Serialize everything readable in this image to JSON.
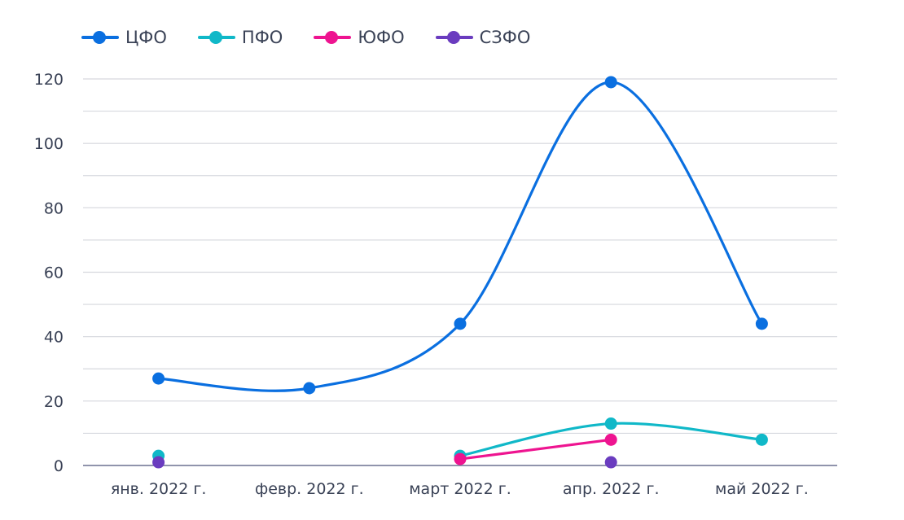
{
  "chart_data": {
    "type": "line",
    "categories": [
      "янв. 2022 г.",
      "февр. 2022 г.",
      "март 2022 г.",
      "апр. 2022 г.",
      "май 2022 г."
    ],
    "ylim": [
      0,
      120
    ],
    "yticks": [
      0,
      20,
      40,
      60,
      80,
      100,
      120
    ],
    "grid": true,
    "legend_position": "top-left",
    "series": [
      {
        "name": "ЦФО",
        "color": "#0a6fe0",
        "values": [
          27,
          24,
          44,
          119,
          44
        ]
      },
      {
        "name": "ПФО",
        "color": "#10b8c8",
        "values": [
          3,
          null,
          3,
          13,
          8
        ]
      },
      {
        "name": "ЮФО",
        "color": "#ee1490",
        "values": [
          null,
          null,
          2,
          8,
          null
        ]
      },
      {
        "name": "СЗФО",
        "color": "#6a3cbf",
        "values": [
          1,
          null,
          null,
          1,
          null
        ]
      }
    ]
  }
}
